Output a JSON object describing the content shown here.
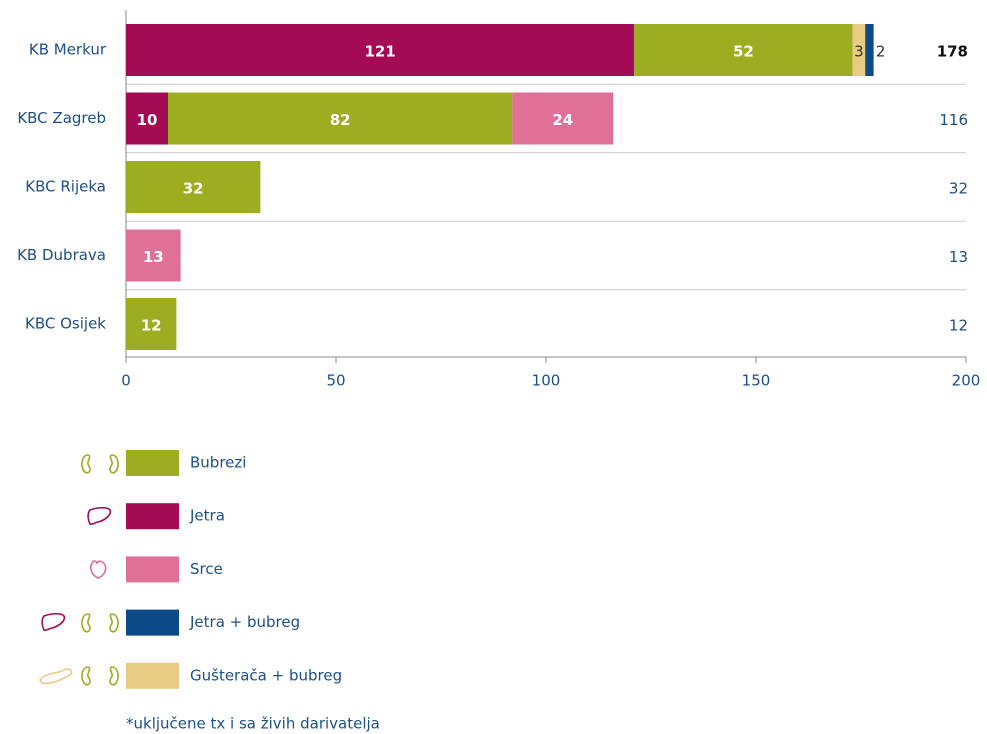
{
  "chart_data": {
    "type": "stacked-bar-horizontal",
    "categories": [
      "KB Merkur",
      "KBC Zagreb",
      "KBC Rijeka",
      "KB Dubrava",
      "KBC Osijek"
    ],
    "series": [
      {
        "name": "Jetra",
        "color": "#a30b55",
        "values": [
          121,
          10,
          null,
          null,
          null
        ]
      },
      {
        "name": "Bubrezi",
        "color": "#9cad22",
        "values": [
          52,
          82,
          32,
          null,
          12
        ]
      },
      {
        "name": "Srce",
        "color": "#df7197",
        "values": [
          null,
          24,
          null,
          13,
          null
        ]
      },
      {
        "name": "Gušterača + bubreg",
        "color": "#e8cc84",
        "values": [
          3,
          null,
          null,
          null,
          null
        ]
      },
      {
        "name": "Jetra + bubreg",
        "color": "#0b4a87",
        "values": [
          2,
          null,
          null,
          null,
          null
        ]
      }
    ],
    "totals": [
      178,
      116,
      32,
      13,
      12
    ],
    "xlim": [
      0,
      200
    ],
    "xticks": [
      0,
      50,
      100,
      150,
      200
    ],
    "note": "*uključene tx i sa živih darivatelja"
  }
}
